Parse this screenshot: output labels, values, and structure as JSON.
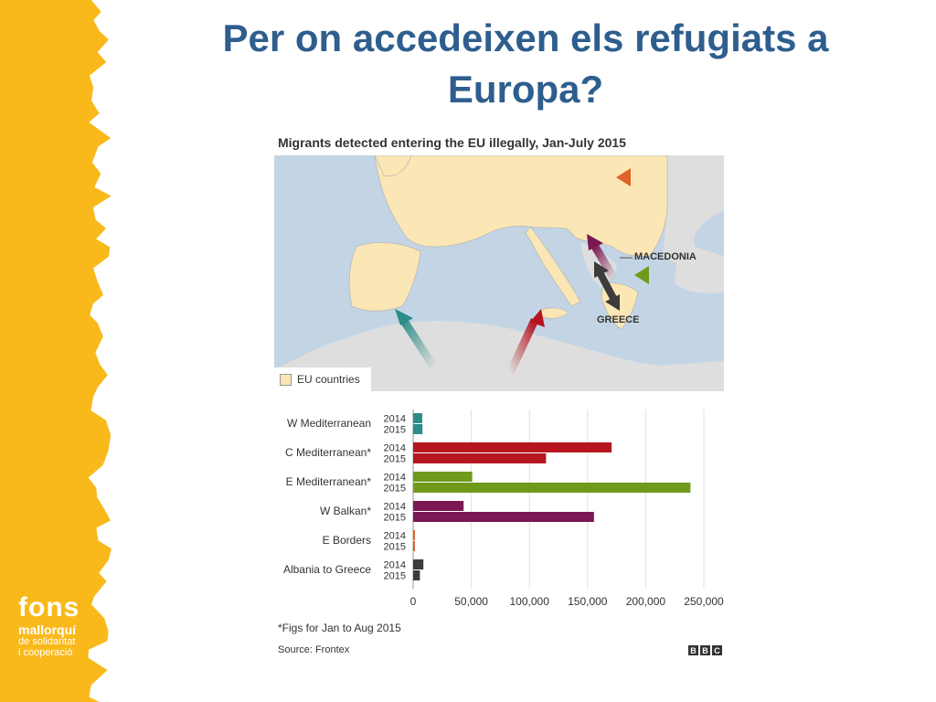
{
  "slide": {
    "title_line1": "Per on accedeixen els refugiats a",
    "title_line2": "Europa?"
  },
  "logo": {
    "line1": "fons",
    "line2": "mallorquí",
    "line3": "de solidaritat",
    "line4": "i cooperació"
  },
  "figure": {
    "title": "Migrants detected entering the EU illegally, Jan-July 2015",
    "legend_label": "EU countries",
    "map_labels": {
      "macedonia": "MACEDONIA",
      "greece": "GREECE"
    },
    "footnote": "*Figs for Jan to Aug 2015",
    "source": "Source: Frontex",
    "bbc": [
      "B",
      "B",
      "C"
    ]
  },
  "colors": {
    "sidebar": "#f9b91b",
    "title": "#2e5e8e",
    "sea": "#c3d5e4",
    "eu_land": "#fbe6b5",
    "non_eu_land": "#dedede"
  },
  "chart_data": {
    "type": "bar",
    "orientation": "horizontal",
    "categories": [
      "W Mediterranean",
      "C Mediterranean*",
      "E Mediterranean*",
      "W Balkan*",
      "E Borders",
      "Albania to Greece"
    ],
    "series": [
      {
        "name": "2014",
        "values": [
          7800,
          170700,
          50800,
          43400,
          1300,
          8800
        ]
      },
      {
        "name": "2015",
        "values": [
          8000,
          114300,
          238500,
          155500,
          800,
          5800
        ]
      }
    ],
    "category_colors": [
      "#2b8c88",
      "#b5161f",
      "#6f9a1c",
      "#7b1853",
      "#e0622a",
      "#3c3c3c"
    ],
    "xticks": [
      "0",
      "50,000",
      "100,000",
      "150,000",
      "200,000",
      "250,000"
    ],
    "xlim": [
      0,
      250000
    ],
    "grid": true
  }
}
